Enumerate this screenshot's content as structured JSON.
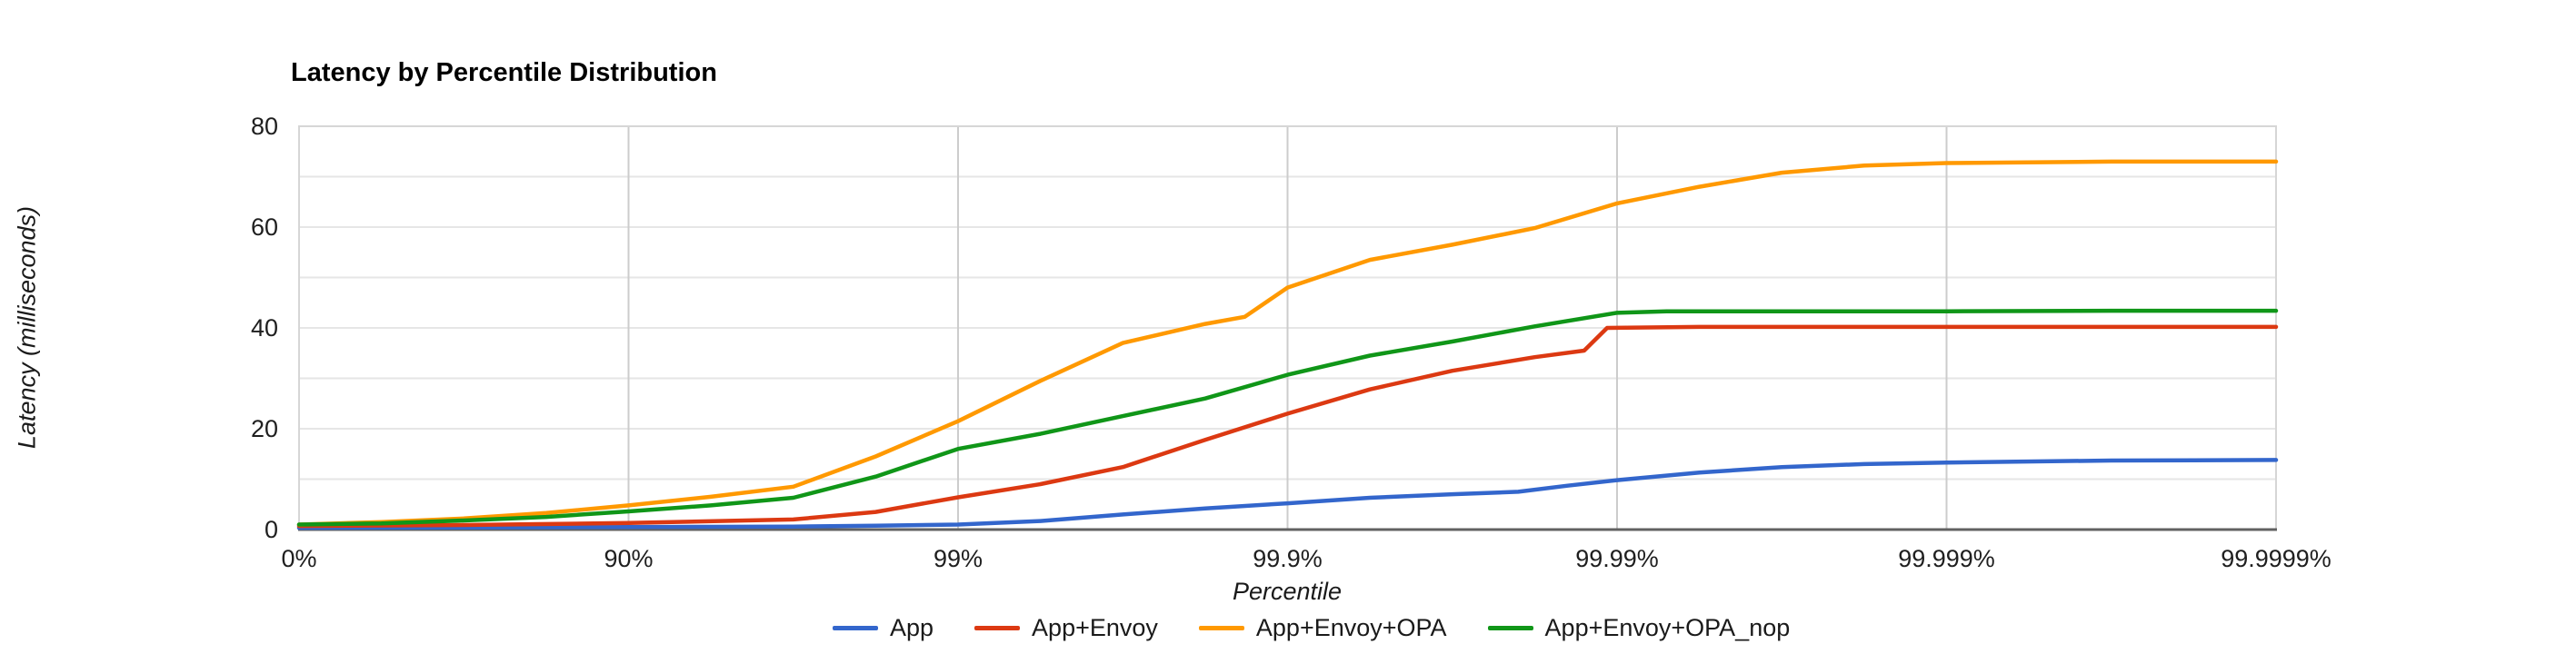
{
  "chart_data": {
    "type": "line",
    "title": "Latency by Percentile Distribution",
    "xlabel": "Percentile",
    "ylabel": "Latency (milliseconds)",
    "legend_position": "bottom",
    "grid": true,
    "x_axis": {
      "scale": "percentile-log (each labeled tick is one decade of 1/(1-p), equally spaced)",
      "tick_labels": [
        "0%",
        "90%",
        "99%",
        "99.9%",
        "99.99%",
        "99.999%",
        "99.9999%"
      ],
      "tick_units": [
        0,
        1,
        2,
        3,
        4,
        5,
        6
      ]
    },
    "y_axis": {
      "min": 0,
      "max": 80,
      "tick_labels": [
        "0",
        "20",
        "40",
        "60",
        "80"
      ],
      "tick_values": [
        0,
        20,
        40,
        60,
        80
      ],
      "minor_grid_step": 10
    },
    "series": [
      {
        "name": "App",
        "color": "#3366CC",
        "points_units_ms": [
          [
            0,
            0.35
          ],
          [
            0.5,
            0.4
          ],
          [
            1,
            0.5
          ],
          [
            1.5,
            0.6
          ],
          [
            1.75,
            0.75
          ],
          [
            2,
            1.0
          ],
          [
            2.25,
            1.7
          ],
          [
            2.5,
            3.0
          ],
          [
            2.75,
            4.2
          ],
          [
            3,
            5.2
          ],
          [
            3.25,
            6.3
          ],
          [
            3.5,
            7.0
          ],
          [
            3.7,
            7.5
          ],
          [
            3.85,
            8.7
          ],
          [
            4,
            9.8
          ],
          [
            4.25,
            11.3
          ],
          [
            4.5,
            12.4
          ],
          [
            4.75,
            13.0
          ],
          [
            5,
            13.3
          ],
          [
            5.5,
            13.7
          ],
          [
            6,
            13.8
          ]
        ]
      },
      {
        "name": "App+Envoy",
        "color": "#DC3912",
        "points_units_ms": [
          [
            0,
            0.7
          ],
          [
            0.5,
            0.9
          ],
          [
            1,
            1.3
          ],
          [
            1.5,
            2.0
          ],
          [
            1.75,
            3.5
          ],
          [
            2,
            6.4
          ],
          [
            2.25,
            9.0
          ],
          [
            2.5,
            12.4
          ],
          [
            2.75,
            17.8
          ],
          [
            3,
            23.0
          ],
          [
            3.25,
            27.8
          ],
          [
            3.5,
            31.5
          ],
          [
            3.75,
            34.2
          ],
          [
            3.9,
            35.5
          ],
          [
            3.97,
            40.0
          ],
          [
            4.25,
            40.2
          ],
          [
            5,
            40.2
          ],
          [
            6,
            40.2
          ]
        ]
      },
      {
        "name": "App+Envoy+OPA",
        "color": "#FF9900",
        "points_units_ms": [
          [
            0,
            1.0
          ],
          [
            0.25,
            1.5
          ],
          [
            0.5,
            2.2
          ],
          [
            0.75,
            3.3
          ],
          [
            1,
            4.8
          ],
          [
            1.25,
            6.5
          ],
          [
            1.5,
            8.5
          ],
          [
            1.75,
            14.5
          ],
          [
            2,
            21.5
          ],
          [
            2.25,
            29.5
          ],
          [
            2.5,
            37.0
          ],
          [
            2.75,
            40.8
          ],
          [
            2.87,
            42.2
          ],
          [
            3,
            48.0
          ],
          [
            3.25,
            53.5
          ],
          [
            3.5,
            56.5
          ],
          [
            3.75,
            59.8
          ],
          [
            4,
            64.7
          ],
          [
            4.25,
            68.0
          ],
          [
            4.5,
            70.8
          ],
          [
            4.75,
            72.2
          ],
          [
            5,
            72.7
          ],
          [
            5.5,
            73.0
          ],
          [
            6,
            73.0
          ]
        ]
      },
      {
        "name": "App+Envoy+OPA_nop",
        "color": "#109618",
        "points_units_ms": [
          [
            0,
            1.0
          ],
          [
            0.25,
            1.2
          ],
          [
            0.5,
            1.8
          ],
          [
            0.75,
            2.5
          ],
          [
            1,
            3.6
          ],
          [
            1.25,
            4.8
          ],
          [
            1.5,
            6.3
          ],
          [
            1.75,
            10.5
          ],
          [
            2,
            16.0
          ],
          [
            2.25,
            19.0
          ],
          [
            2.5,
            22.5
          ],
          [
            2.75,
            26.0
          ],
          [
            3,
            30.7
          ],
          [
            3.25,
            34.5
          ],
          [
            3.5,
            37.3
          ],
          [
            3.75,
            40.3
          ],
          [
            4,
            43.0
          ],
          [
            4.15,
            43.3
          ],
          [
            4.5,
            43.3
          ],
          [
            5,
            43.3
          ],
          [
            5.5,
            43.4
          ],
          [
            6,
            43.4
          ]
        ]
      }
    ],
    "colors": {
      "horizontal_gridline": "#e6e6e6",
      "vertical_gridline": "#cccccc",
      "plot_border": "#d6d6d6",
      "x_axis_line": "#616161",
      "text": "#1f1f1f"
    }
  }
}
